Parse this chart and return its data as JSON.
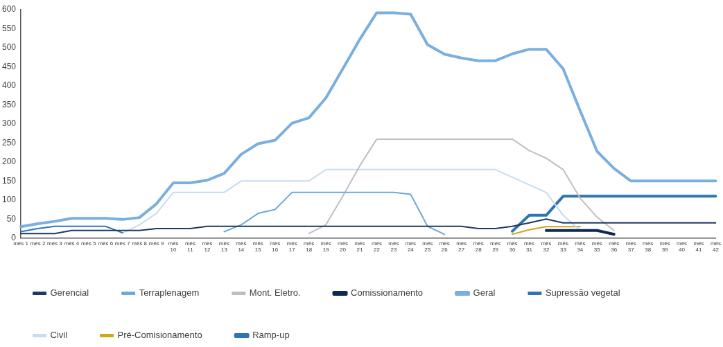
{
  "chart_data": {
    "type": "line",
    "categories": [
      "mês 1",
      "mês 2",
      "mês 3",
      "mês 4",
      "mês 5",
      "mês 6",
      "mês 7",
      "mês 8",
      "mês 9",
      "mês 10",
      "mês 11",
      "mês 12",
      "mês 13",
      "mês 14",
      "mês 15",
      "mês 16",
      "mês 17",
      "mês 18",
      "mês 19",
      "mês 20",
      "mês 21",
      "mês 22",
      "mês 23",
      "mês 24",
      "mês 25",
      "mês 26",
      "mês 27",
      "mês 28",
      "mês 29",
      "mês 30",
      "mês 31",
      "mês 32",
      "mês 33",
      "mês 34",
      "mês 35",
      "mês 36",
      "mês 37",
      "mês 38",
      "mês 39",
      "mês 40",
      "mês 41",
      "mês 42"
    ],
    "ylim": [
      0,
      600
    ],
    "yticks": [
      0,
      50,
      100,
      150,
      200,
      250,
      300,
      350,
      400,
      450,
      500,
      550,
      600
    ],
    "grid": false,
    "legend": "bottom",
    "marker": "none",
    "line_style": "solid",
    "series": [
      {
        "name": "Gerencial",
        "color": "#1f3864",
        "values": [
          12,
          12,
          12,
          20,
          20,
          20,
          20,
          20,
          25,
          25,
          25,
          31,
          31,
          31,
          31,
          31,
          31,
          31,
          31,
          31,
          31,
          31,
          31,
          31,
          31,
          31,
          31,
          25,
          25,
          31,
          40,
          50,
          40,
          40,
          40,
          40,
          40,
          40,
          40,
          40,
          40,
          40
        ]
      },
      {
        "name": "Terraplenagem",
        "color": "#6fa8dc",
        "values": [
          null,
          null,
          null,
          null,
          null,
          null,
          null,
          null,
          null,
          null,
          null,
          null,
          17,
          35,
          65,
          75,
          120,
          120,
          120,
          120,
          120,
          120,
          120,
          115,
          31,
          10,
          null,
          null,
          null,
          null,
          null,
          null,
          null,
          null,
          null,
          null,
          null,
          null,
          null,
          null,
          null,
          null
        ]
      },
      {
        "name": "Mont. Eletro.",
        "color": "#bfbfbf",
        "values": [
          null,
          null,
          null,
          null,
          null,
          null,
          null,
          null,
          null,
          null,
          null,
          null,
          null,
          null,
          null,
          null,
          null,
          12,
          35,
          110,
          190,
          260,
          260,
          260,
          260,
          260,
          260,
          260,
          260,
          260,
          230,
          210,
          180,
          105,
          55,
          20,
          null,
          null,
          null,
          null,
          null,
          null
        ]
      },
      {
        "name": "Comissionamento",
        "color": "#0f2a52",
        "values": [
          null,
          null,
          null,
          null,
          null,
          null,
          null,
          null,
          null,
          null,
          null,
          null,
          null,
          null,
          null,
          null,
          null,
          null,
          null,
          null,
          null,
          null,
          null,
          null,
          null,
          null,
          null,
          null,
          null,
          null,
          null,
          20,
          20,
          20,
          20,
          10,
          null,
          null,
          null,
          null,
          null,
          null
        ]
      },
      {
        "name": "Geral",
        "color": "#7aafe0",
        "values": [
          30,
          38,
          44,
          52,
          52,
          52,
          49,
          54,
          90,
          145,
          145,
          152,
          170,
          220,
          248,
          257,
          302,
          316,
          368,
          445,
          522,
          592,
          592,
          588,
          508,
          483,
          473,
          466,
          466,
          484,
          496,
          496,
          445,
          335,
          228,
          183,
          150,
          150,
          150,
          150,
          150,
          150
        ]
      },
      {
        "name": "Supressão vegetal",
        "color": "#2e75b6",
        "values": [
          17,
          25,
          31,
          31,
          31,
          31,
          14,
          null,
          null,
          null,
          null,
          null,
          null,
          null,
          null,
          null,
          null,
          null,
          null,
          null,
          null,
          null,
          null,
          null,
          null,
          null,
          null,
          null,
          null,
          null,
          null,
          null,
          null,
          null,
          null,
          null,
          null,
          null,
          null,
          null,
          null,
          null
        ]
      },
      {
        "name": "Civil",
        "color": "#c6dcf2",
        "values": [
          null,
          null,
          null,
          null,
          null,
          null,
          13,
          35,
          65,
          120,
          120,
          120,
          120,
          150,
          150,
          150,
          150,
          150,
          180,
          180,
          180,
          180,
          180,
          180,
          180,
          180,
          180,
          180,
          180,
          160,
          140,
          120,
          60,
          20,
          null,
          null,
          null,
          null,
          null,
          null,
          null,
          null
        ]
      },
      {
        "name": "Pré-Comisionamento",
        "color": "#d4a418",
        "values": [
          null,
          null,
          null,
          null,
          null,
          null,
          null,
          null,
          null,
          null,
          null,
          null,
          null,
          null,
          null,
          null,
          null,
          null,
          null,
          null,
          null,
          null,
          null,
          null,
          null,
          null,
          null,
          null,
          null,
          10,
          22,
          30,
          30,
          30,
          null,
          null,
          null,
          null,
          null,
          null,
          null,
          null
        ]
      },
      {
        "name": "Ramp-up",
        "color": "#2e74b5",
        "values": [
          null,
          null,
          null,
          null,
          null,
          null,
          null,
          null,
          null,
          null,
          null,
          null,
          null,
          null,
          null,
          null,
          null,
          null,
          null,
          null,
          null,
          null,
          null,
          null,
          null,
          null,
          null,
          null,
          null,
          18,
          60,
          60,
          110,
          110,
          110,
          110,
          110,
          110,
          110,
          110,
          110,
          110
        ]
      }
    ]
  }
}
